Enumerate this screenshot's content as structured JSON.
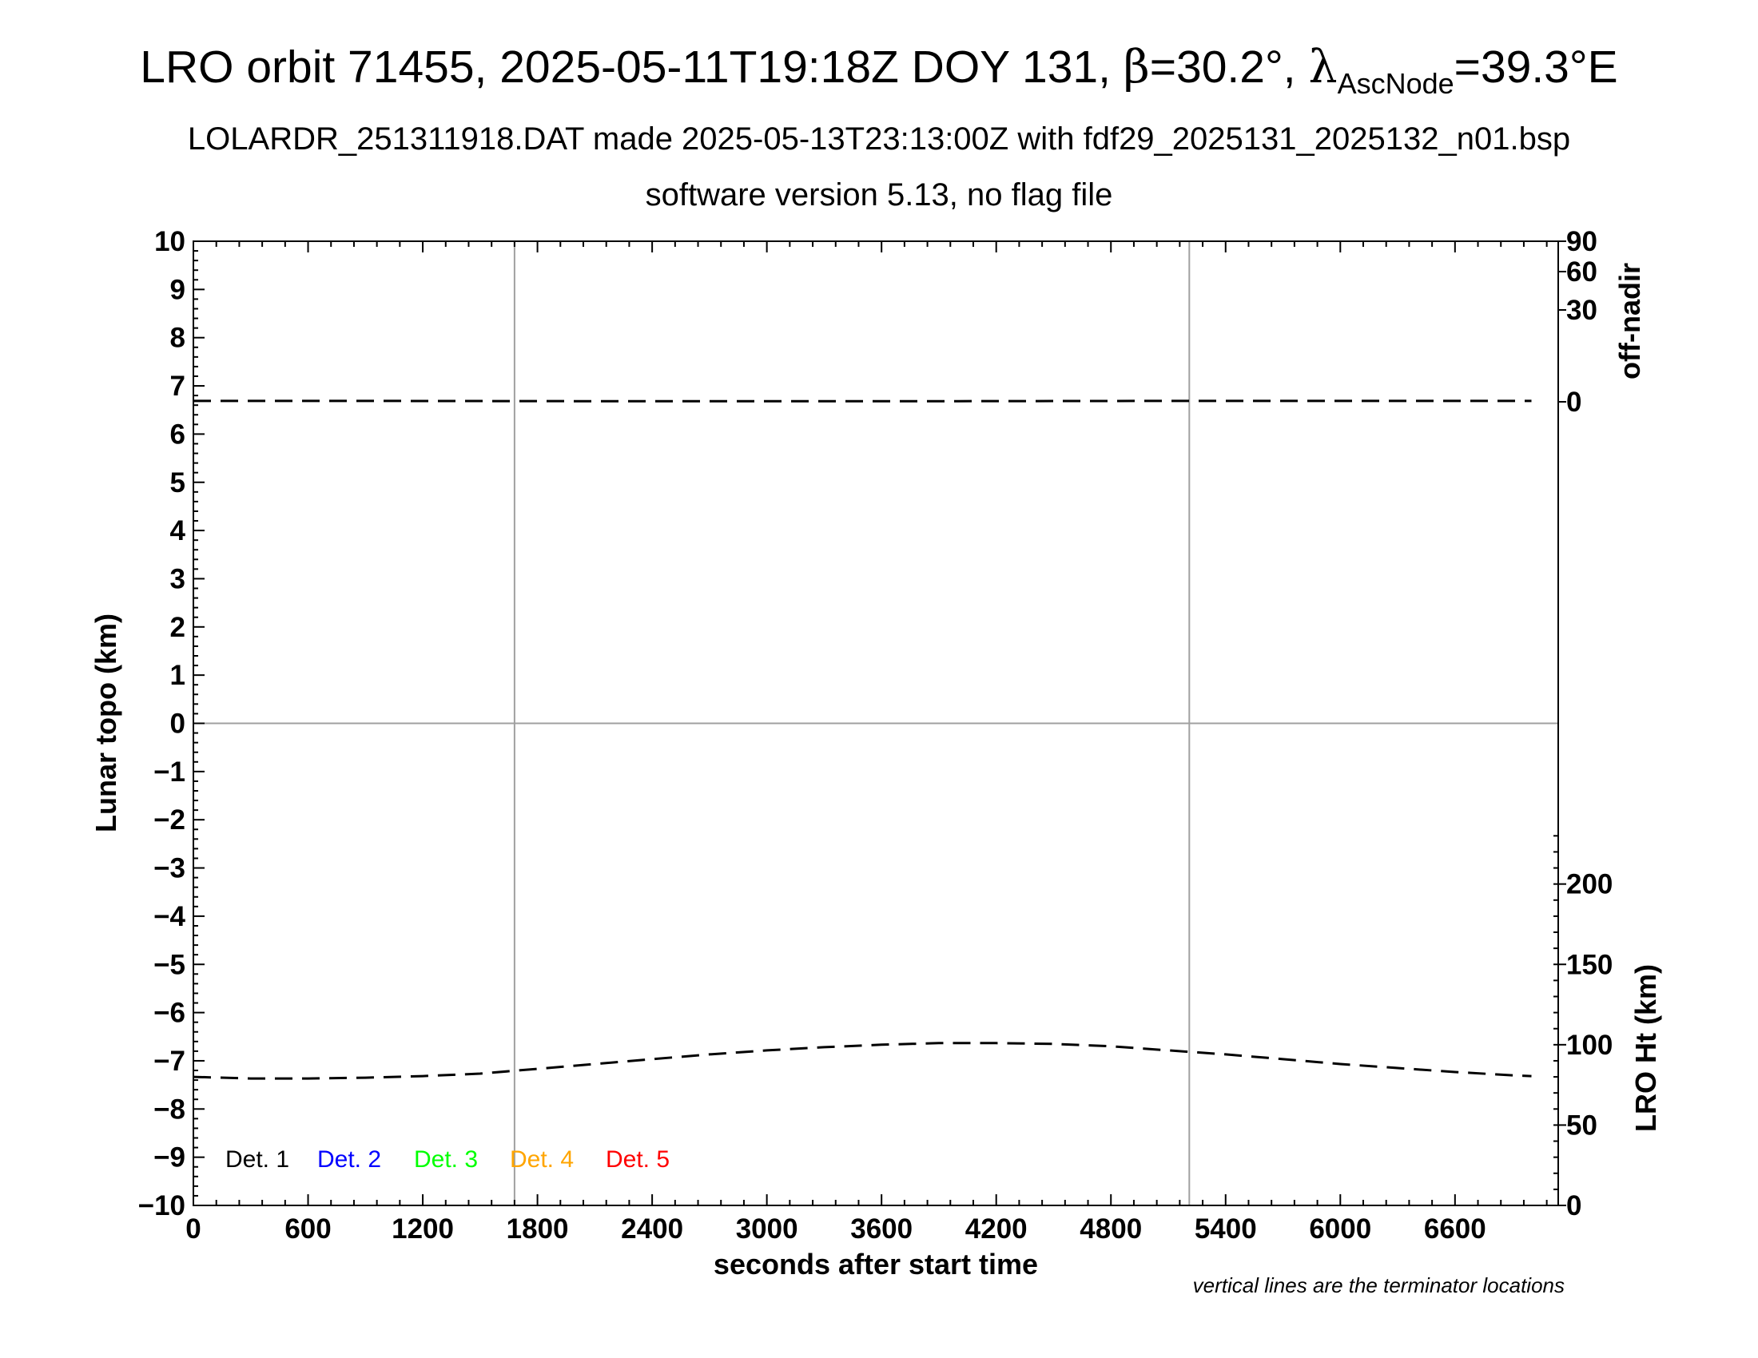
{
  "title_prefix": "LRO orbit 71455, 2025-05-11T19:18Z DOY 131, ",
  "beta_symbol": "β",
  "beta_value": "=30.2°, ",
  "lambda_symbol": "λ",
  "lambda_subscript": "AscNode",
  "lambda_value": "=39.3°E",
  "subtitle1": "LOLARDR_251311918.DAT made 2025-05-13T23:13:00Z with fdf29_2025131_2025132_n01.bsp",
  "subtitle2": "software version 5.13, no flag file",
  "footnote": "vertical lines are the terminator locations",
  "colors": {
    "det1": "#000000",
    "det2": "#0000ff",
    "det3": "#00ff00",
    "det4": "#ffa500",
    "det5": "#ff0000",
    "grid": "#a0a0a0"
  },
  "chart_data": {
    "type": "line",
    "xlabel": "seconds after start time",
    "ylabel": "Lunar topo (km)",
    "xlim": [
      0,
      7140
    ],
    "ylim": [
      -10,
      10
    ],
    "x_ticks": [
      0,
      600,
      1200,
      1800,
      2400,
      3000,
      3600,
      4200,
      4800,
      5400,
      6000,
      6600
    ],
    "y_ticks": [
      10,
      9,
      8,
      7,
      6,
      5,
      4,
      3,
      2,
      1,
      0,
      -1,
      -2,
      -3,
      -4,
      -5,
      -6,
      -7,
      -8,
      -9,
      -10
    ],
    "y_tick_labels": [
      "10",
      "9",
      "8",
      "7",
      "6",
      "5",
      "4",
      "3",
      "2",
      "1",
      "0",
      "−1",
      "−2",
      "−3",
      "−4",
      "−5",
      "−6",
      "−7",
      "−8",
      "−9",
      "−10"
    ],
    "terminator_lines_x": [
      1680,
      5210
    ],
    "right_axis_top": {
      "label": "off-nadir",
      "ticks": [
        90,
        60,
        30,
        0
      ]
    },
    "right_axis_bottom": {
      "label": "LRO Ht (km)",
      "ylim": [
        0,
        300
      ],
      "ticks": [
        0,
        50,
        100,
        150,
        200
      ]
    },
    "legend": [
      "Det. 1",
      "Det. 2",
      "Det. 3",
      "Det. 4",
      "Det. 5"
    ],
    "grid": "terminator verticals and zero line",
    "series": [
      {
        "axis": "off-nadir",
        "style": "dashed",
        "x": [
          0,
          1000,
          2000,
          3000,
          4000,
          5000,
          6000,
          7000
        ],
        "values": [
          0.3,
          0.3,
          0.2,
          0.2,
          0.2,
          0.3,
          0.3,
          0.3
        ]
      },
      {
        "axis": "LRO Ht (km)",
        "style": "dashed",
        "x": [
          0,
          300,
          600,
          900,
          1200,
          1500,
          1800,
          2100,
          2400,
          2700,
          3000,
          3300,
          3600,
          3900,
          4200,
          4500,
          4800,
          5100,
          5400,
          5700,
          6000,
          6300,
          6600,
          6900,
          7000
        ],
        "values": [
          80,
          79,
          79,
          79.5,
          80.5,
          82,
          85,
          88,
          91,
          94,
          96.5,
          98.5,
          100,
          101,
          101,
          100.5,
          99,
          96.5,
          94,
          91,
          88,
          85.5,
          83,
          81,
          80.5
        ]
      }
    ]
  }
}
